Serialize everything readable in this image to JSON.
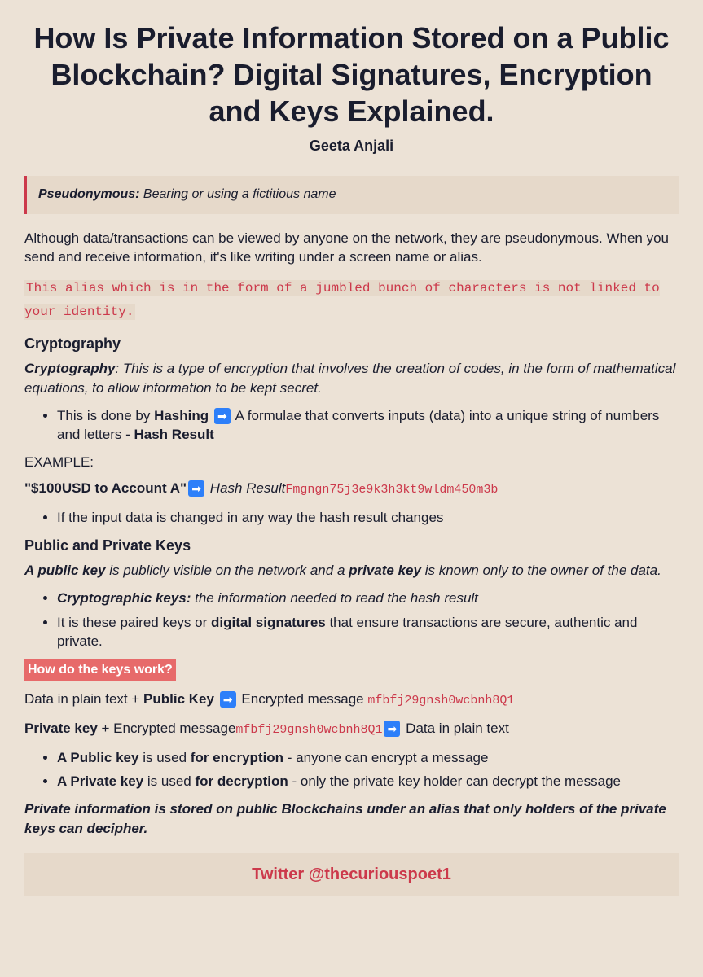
{
  "title": "How Is Private Information Stored on a Public Blockchain? Digital Signatures, Encryption and Keys Explained.",
  "author": "Geeta Anjali",
  "defbox": {
    "term": "Pseudonymous:",
    "text": " Bearing or using a fictitious name"
  },
  "intro": "Although data/transactions can be viewed by anyone on the network, they are pseudonymous. When you send and receive information, it's like writing under a screen name or alias.",
  "codeline": "This alias which is in the form of a jumbled bunch of characters is not linked to your identity.",
  "crypto": {
    "heading": "Cryptography",
    "term": "Cryptography",
    "def": ": This is a type of encryption that involves the creation of codes, in the form of mathematical equations, to allow information to be kept secret.",
    "bullet1_a": "This is done by ",
    "bullet1_b": "Hashing",
    "bullet1_c": " A formulae that converts inputs (data) into a unique string of numbers and letters - ",
    "bullet1_d": "Hash Result",
    "example_label": "EXAMPLE:",
    "example_a": "\"$100USD to Account A\"",
    "example_b": " Hash Result",
    "example_hash": "Fmgngn75j3e9k3h3kt9wldm450m3b",
    "bullet2": "If the input data is changed in any way the hash result changes"
  },
  "keys": {
    "heading": "Public and Private Keys",
    "def_a": "A public key",
    "def_b": " is publicly visible on the network and a ",
    "def_c": "private key",
    "def_d": " is known only to the owner of the data.",
    "bullet1_a": "Cryptographic keys:",
    "bullet1_b": " the information needed to read the hash result",
    "bullet2_a": "It is these paired keys or ",
    "bullet2_b": "digital signatures",
    "bullet2_c": " that ensure transactions are secure, authentic and private."
  },
  "howwork": {
    "highlight": "How do the keys work?",
    "line1_a": "Data in plain text + ",
    "line1_b": "Public Key",
    "line1_c": " Encrypted message ",
    "line1_hash": "mfbfj29gnsh0wcbnh8Q1",
    "line2_a": "Private key",
    "line2_b": " + Encrypted message",
    "line2_hash": "mfbfj29gnsh0wcbnh8Q1",
    "line2_c": " Data in plain text",
    "bullet1_a": "A Public key",
    "bullet1_b": " is used ",
    "bullet1_c": "for encryption",
    "bullet1_d": " - anyone can encrypt a message",
    "bullet2_a": "A Private key",
    "bullet2_b": " is used ",
    "bullet2_c": "for decryption",
    "bullet2_d": " - only the private key holder can decrypt the message"
  },
  "summary": "Private information is stored on public Blockchains under an alias that only holders of the private keys can decipher.",
  "footer": "Twitter @thecuriouspoet1",
  "arrow_glyph": "➡"
}
